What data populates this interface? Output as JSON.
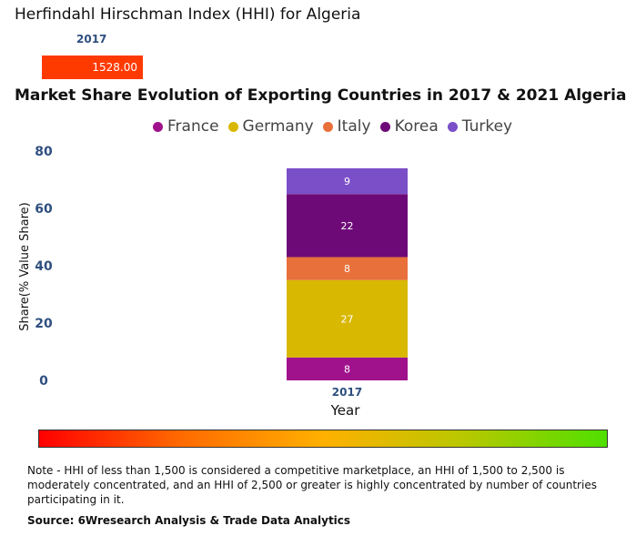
{
  "hhi": {
    "title": "Herfindahl Hirschman Index (HHI) for Algeria",
    "year": "2017",
    "value_label": "1528.00",
    "bar_color": "#ff3a00"
  },
  "chart_data": {
    "type": "bar",
    "stacked": true,
    "title": "Market Share Evolution of Exporting Countries in 2017 & 2021 Algeria",
    "xlabel": "Year",
    "ylabel": "Share(% Value Share)",
    "categories": [
      "2017"
    ],
    "ylim": [
      0,
      80
    ],
    "yticks": [
      0,
      20,
      40,
      60,
      80
    ],
    "legend_position": "top",
    "series": [
      {
        "name": "France",
        "values": [
          8
        ],
        "color": "#a0128c"
      },
      {
        "name": "Germany",
        "values": [
          27
        ],
        "color": "#d8b800"
      },
      {
        "name": "Italy",
        "values": [
          8
        ],
        "color": "#e8703a"
      },
      {
        "name": "Korea",
        "values": [
          22
        ],
        "color": "#6e0a78"
      },
      {
        "name": "Turkey",
        "values": [
          9
        ],
        "color": "#7b4fc8"
      }
    ]
  },
  "note": "Note - HHI of less than 1,500 is considered a competitive marketplace, an HHI of 1,500 to 2,500 is moderately concentrated, and an HHI of 2,500 or greater is highly concentrated by number of countries participating in it.",
  "source": "Source: 6Wresearch Analysis & Trade Data Analytics"
}
